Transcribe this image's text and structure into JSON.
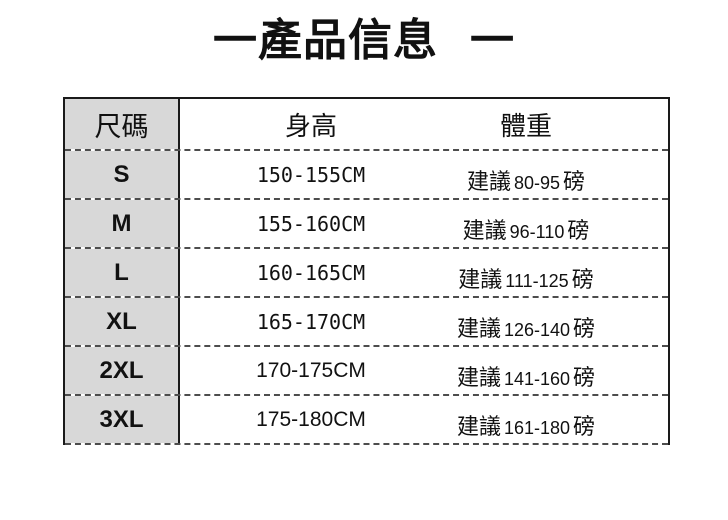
{
  "title": {
    "text": "一產品信息",
    "dash": "一"
  },
  "table": {
    "headers": [
      "尺碼",
      "身高",
      "體重"
    ],
    "rows": [
      {
        "size": "S",
        "height": "150-155CM",
        "weight_prefix": "建議",
        "weight_range": "80-95",
        "weight_unit": "磅"
      },
      {
        "size": "M",
        "height": "155-160CM",
        "weight_prefix": "建議",
        "weight_range": "96-110",
        "weight_unit": "磅"
      },
      {
        "size": "L",
        "height": "160-165CM",
        "weight_prefix": "建議",
        "weight_range": "111-125",
        "weight_unit": "磅"
      },
      {
        "size": "XL",
        "height": "165-170CM",
        "weight_prefix": "建議",
        "weight_range": "126-140",
        "weight_unit": "磅"
      },
      {
        "size": "2XL",
        "height": "170-175CM",
        "weight_prefix": "建議",
        "weight_range": "141-160",
        "weight_unit": "磅"
      },
      {
        "size": "3XL",
        "height": "175-180CM",
        "weight_prefix": "建議",
        "weight_range": "161-180",
        "weight_unit": "磅"
      }
    ],
    "colors": {
      "size_column_bg": "#d8d8d8",
      "solid_border": "#1a1a1a",
      "dashed_line": "#4d4d4d",
      "text": "#111111",
      "background": "#ffffff"
    }
  }
}
